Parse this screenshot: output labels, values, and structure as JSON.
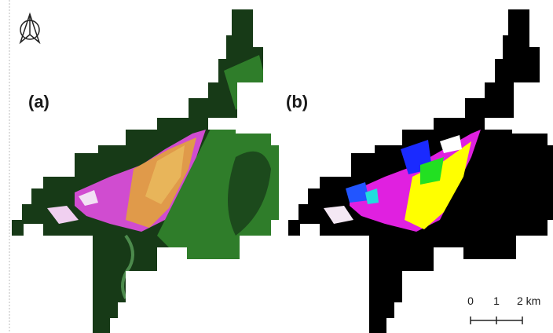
{
  "panels": [
    {
      "label": "(a)"
    },
    {
      "label": "(b)"
    }
  ],
  "scale_bar": {
    "labels": [
      "0",
      "1",
      "2 km"
    ]
  }
}
